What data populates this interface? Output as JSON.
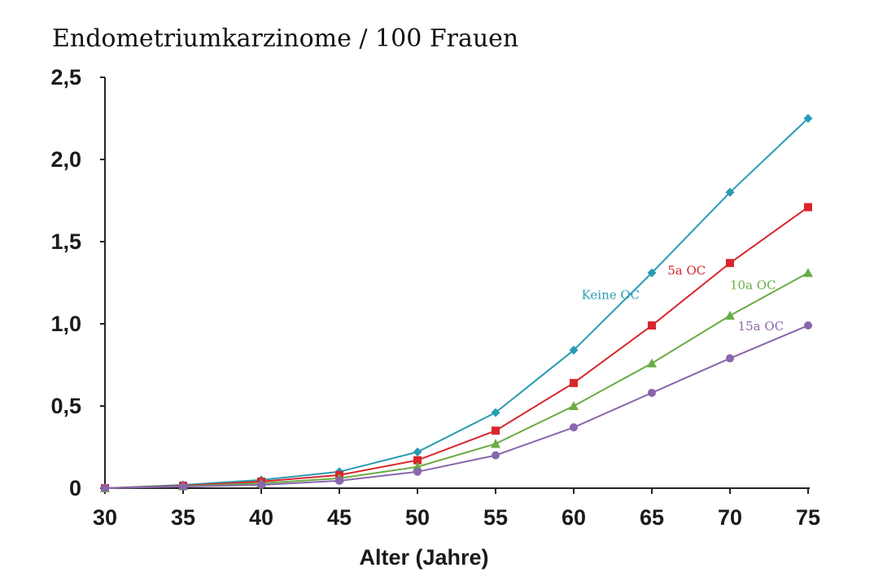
{
  "chart_data": {
    "type": "line",
    "title": "Endometriumkarzinome / 100 Frauen",
    "xlabel": "Alter (Jahre)",
    "ylabel": "",
    "x": [
      30,
      35,
      40,
      45,
      50,
      55,
      60,
      65,
      70,
      75
    ],
    "xlim": [
      30,
      75
    ],
    "ylim": [
      0,
      2.5
    ],
    "x_ticks": [
      "30",
      "35",
      "40",
      "45",
      "50",
      "55",
      "60",
      "65",
      "70",
      "75"
    ],
    "y_ticks": [
      {
        "value": 0,
        "label": "0"
      },
      {
        "value": 0.5,
        "label": "0,5"
      },
      {
        "value": 1.0,
        "label": "1,0"
      },
      {
        "value": 1.5,
        "label": "1,5"
      },
      {
        "value": 2.0,
        "label": "2,0"
      },
      {
        "value": 2.5,
        "label": "2,5"
      }
    ],
    "grid": false,
    "series": [
      {
        "name": "Keine OC",
        "color": "#2a9bb5",
        "marker": "diamond",
        "values": [
          0,
          0.02,
          0.05,
          0.1,
          0.22,
          0.46,
          0.84,
          1.31,
          1.8,
          2.25
        ],
        "label_at": [
          60.5,
          1.15
        ]
      },
      {
        "name": "5a OC",
        "color": "#d9262b",
        "marker": "square",
        "values": [
          0,
          0.015,
          0.04,
          0.08,
          0.17,
          0.35,
          0.64,
          0.99,
          1.37,
          1.71
        ],
        "label_at": [
          66,
          1.3
        ]
      },
      {
        "name": "10a OC",
        "color": "#6aac45",
        "marker": "triangle",
        "values": [
          0,
          0.012,
          0.03,
          0.06,
          0.13,
          0.27,
          0.5,
          0.76,
          1.05,
          1.31
        ],
        "label_at": [
          70,
          1.21
        ]
      },
      {
        "name": "15a OC",
        "color": "#8a66ad",
        "marker": "circle",
        "values": [
          0,
          0.01,
          0.02,
          0.045,
          0.1,
          0.2,
          0.37,
          0.58,
          0.79,
          0.99
        ],
        "label_at": [
          70.5,
          0.96
        ]
      }
    ]
  }
}
